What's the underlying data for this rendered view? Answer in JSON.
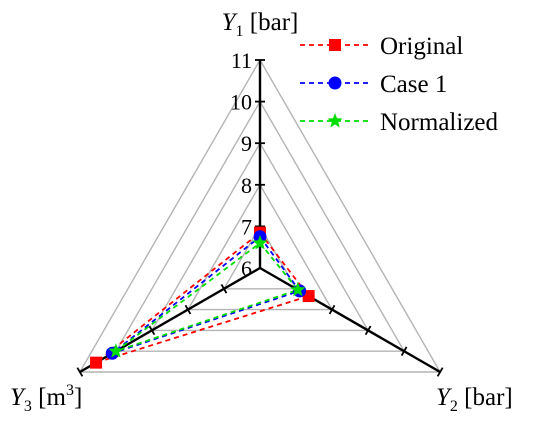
{
  "chart_data": {
    "type": "radar",
    "axes": [
      {
        "sym": "Y",
        "sub": "1",
        "unit": " [bar]",
        "sup": ""
      },
      {
        "sym": "Y",
        "sub": "2",
        "unit": " [bar]",
        "sup": ""
      },
      {
        "sym": "Y",
        "sub": "3",
        "unit": " [m",
        "sup": "3",
        "unit_end": "]"
      }
    ],
    "rmin": 6,
    "rmax": 11,
    "ticks": [
      "6",
      "7",
      "8",
      "9",
      "10",
      "11"
    ],
    "series": [
      {
        "name": "Original",
        "color": "#ff0000",
        "marker": "square",
        "values": [
          6.85,
          7.35,
          10.55
        ]
      },
      {
        "name": "Case 1",
        "color": "#0000ff",
        "marker": "circle",
        "values": [
          6.75,
          7.1,
          10.1
        ]
      },
      {
        "name": "Normalized",
        "color": "#00dd00",
        "marker": "star",
        "values": [
          6.6,
          7.05,
          10.0
        ]
      }
    ],
    "legend": "top-right",
    "grid": true
  }
}
